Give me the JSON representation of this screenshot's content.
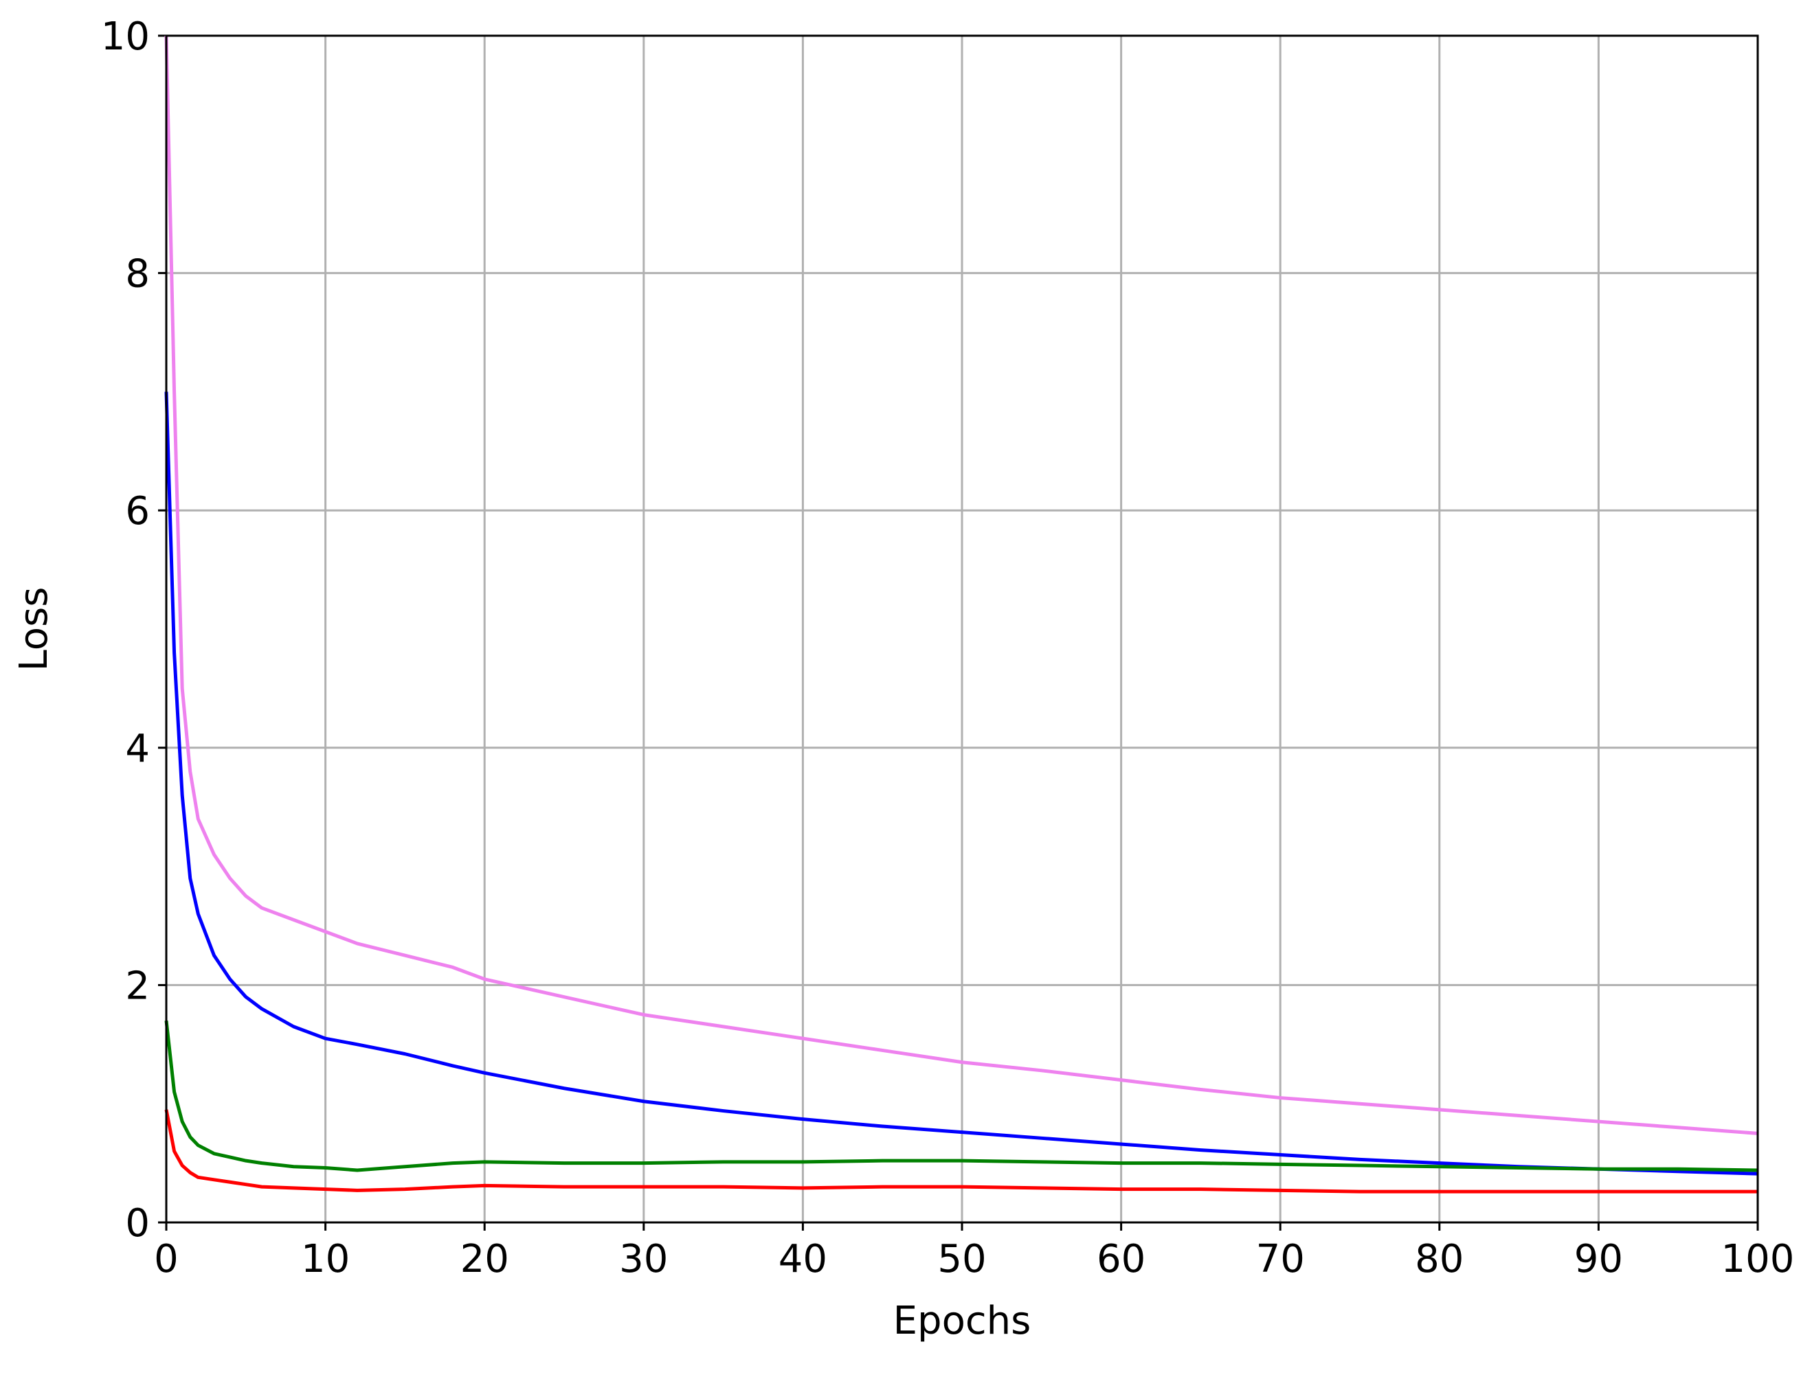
{
  "chart_data": {
    "type": "line",
    "x_label": "Epochs",
    "y_label": "Loss",
    "x": [
      0,
      0.5,
      1,
      1.5,
      2,
      3,
      4,
      5,
      6,
      8,
      10,
      12,
      15,
      18,
      20,
      25,
      30,
      35,
      40,
      45,
      50,
      55,
      60,
      65,
      70,
      75,
      80,
      85,
      90,
      95,
      100
    ],
    "series": [
      {
        "color": "#ee82ee",
        "values": [
          10,
          7,
          4.5,
          3.8,
          3.4,
          3.1,
          2.9,
          2.75,
          2.65,
          2.55,
          2.45,
          2.35,
          2.25,
          2.15,
          2.05,
          1.9,
          1.75,
          1.65,
          1.55,
          1.45,
          1.35,
          1.28,
          1.2,
          1.12,
          1.05,
          1.0,
          0.95,
          0.9,
          0.85,
          0.8,
          0.75
        ]
      },
      {
        "color": "#0000ff",
        "values": [
          7,
          4.8,
          3.6,
          2.9,
          2.6,
          2.25,
          2.05,
          1.9,
          1.8,
          1.65,
          1.55,
          1.5,
          1.42,
          1.32,
          1.26,
          1.13,
          1.02,
          0.94,
          0.87,
          0.81,
          0.76,
          0.71,
          0.66,
          0.61,
          0.57,
          0.53,
          0.5,
          0.47,
          0.45,
          0.43,
          0.41
        ]
      },
      {
        "color": "#008000",
        "values": [
          1.7,
          1.1,
          0.85,
          0.72,
          0.65,
          0.58,
          0.55,
          0.52,
          0.5,
          0.47,
          0.46,
          0.44,
          0.47,
          0.5,
          0.51,
          0.5,
          0.5,
          0.51,
          0.51,
          0.52,
          0.52,
          0.51,
          0.5,
          0.5,
          0.49,
          0.48,
          0.47,
          0.46,
          0.45,
          0.45,
          0.44
        ]
      },
      {
        "color": "#ff0000",
        "values": [
          0.95,
          0.6,
          0.48,
          0.42,
          0.38,
          0.36,
          0.34,
          0.32,
          0.3,
          0.29,
          0.28,
          0.27,
          0.28,
          0.3,
          0.31,
          0.3,
          0.3,
          0.3,
          0.29,
          0.3,
          0.3,
          0.29,
          0.28,
          0.28,
          0.27,
          0.26,
          0.26,
          0.26,
          0.26,
          0.26,
          0.26
        ]
      }
    ],
    "xlim": [
      0,
      100
    ],
    "xticks": [
      0,
      10,
      20,
      30,
      40,
      50,
      60,
      70,
      80,
      90,
      100
    ],
    "ylim": [
      0,
      10
    ],
    "yticks": [
      0,
      2,
      4,
      6,
      8,
      10
    ],
    "grid": true
  }
}
